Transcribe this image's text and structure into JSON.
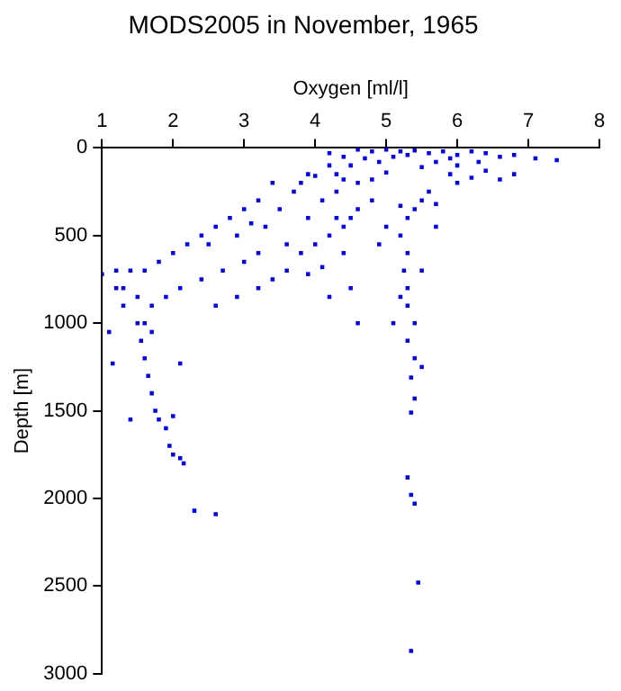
{
  "chart_data": {
    "type": "scatter",
    "title": "MODS2005 in November, 1965",
    "xlabel": "Oxygen [ml/l]",
    "ylabel": "Depth [m]",
    "x": [
      4.6,
      4.8,
      5.0,
      5.2,
      5.4,
      5.6,
      5.8,
      6.0,
      6.2,
      6.4,
      6.6,
      6.8,
      7.1,
      7.4,
      4.7,
      4.9,
      5.1,
      5.3,
      4.5,
      4.3,
      4.0,
      4.2,
      3.9,
      3.8,
      5.0,
      4.8,
      4.6,
      5.5,
      5.9,
      6.0,
      6.2,
      6.4,
      6.6,
      6.8,
      5.6,
      5.5,
      5.4,
      5.7,
      5.2,
      4.8,
      4.6,
      4.5,
      4.4,
      4.2,
      4.0,
      3.8,
      3.6,
      3.4,
      3.2,
      3.9,
      4.1,
      3.5,
      3.2,
      3.0,
      2.8,
      2.6,
      2.4,
      2.2,
      2.0,
      1.8,
      1.6,
      1.4,
      1.3,
      2.5,
      2.9,
      3.3,
      3.0,
      2.7,
      2.4,
      2.1,
      1.9,
      1.7,
      1.5,
      1.2,
      1.1,
      1.15,
      1.6,
      1.55,
      1.6,
      1.65,
      1.7,
      1.75,
      1.8,
      1.9,
      1.95,
      2.0,
      2.1,
      2.15,
      2.3,
      2.6,
      1.5,
      1.7,
      2.1,
      2.0,
      1.4,
      5.3,
      5.2,
      5.3,
      5.25,
      5.3,
      5.2,
      5.3,
      5.4,
      5.3,
      5.4,
      5.35,
      5.4,
      5.35,
      5.5,
      4.6,
      5.1,
      5.3,
      5.35,
      5.4,
      5.45,
      5.35,
      4.3,
      4.1,
      4.3,
      3.9,
      3.6,
      3.2,
      2.9,
      2.6,
      1.3,
      1.2,
      1.0,
      4.5,
      4.2,
      4.4,
      5.0,
      4.9,
      5.7,
      5.5,
      6.0,
      6.3,
      5.7,
      5.9,
      4.4,
      4.2,
      4.4,
      3.7,
      3.4,
      3.1
    ],
    "values": [
      10,
      20,
      10,
      20,
      15,
      30,
      20,
      40,
      20,
      30,
      50,
      40,
      60,
      70,
      60,
      80,
      50,
      40,
      100,
      150,
      160,
      100,
      150,
      200,
      140,
      180,
      200,
      110,
      150,
      200,
      170,
      130,
      180,
      150,
      250,
      300,
      350,
      320,
      330,
      300,
      350,
      400,
      450,
      500,
      550,
      600,
      700,
      750,
      800,
      720,
      680,
      350,
      300,
      350,
      400,
      450,
      500,
      550,
      600,
      650,
      700,
      700,
      800,
      550,
      500,
      450,
      650,
      700,
      750,
      800,
      850,
      900,
      850,
      800,
      1050,
      1230,
      1000,
      1100,
      1200,
      1300,
      1400,
      1500,
      1550,
      1600,
      1700,
      1750,
      1770,
      1800,
      2070,
      2090,
      1000,
      1050,
      1230,
      1530,
      1550,
      400,
      500,
      600,
      700,
      800,
      850,
      900,
      1000,
      1100,
      1200,
      1310,
      1430,
      1510,
      1250,
      1000,
      1000,
      1880,
      1980,
      2030,
      2480,
      2870,
      400,
      300,
      250,
      400,
      550,
      600,
      850,
      900,
      900,
      700,
      720,
      800,
      850,
      600,
      450,
      550,
      450,
      700,
      100,
      80,
      80,
      60,
      50,
      30,
      180,
      250,
      200,
      430
    ],
    "color": "#0000ff",
    "marker": "square",
    "xlim": [
      1,
      8
    ],
    "xticks": [
      1,
      2,
      3,
      4,
      5,
      6,
      7,
      8
    ],
    "ylim": [
      3000,
      0
    ],
    "yticks": [
      0,
      500,
      1000,
      1500,
      2000,
      2500,
      3000
    ],
    "grid": false,
    "legend": false
  }
}
